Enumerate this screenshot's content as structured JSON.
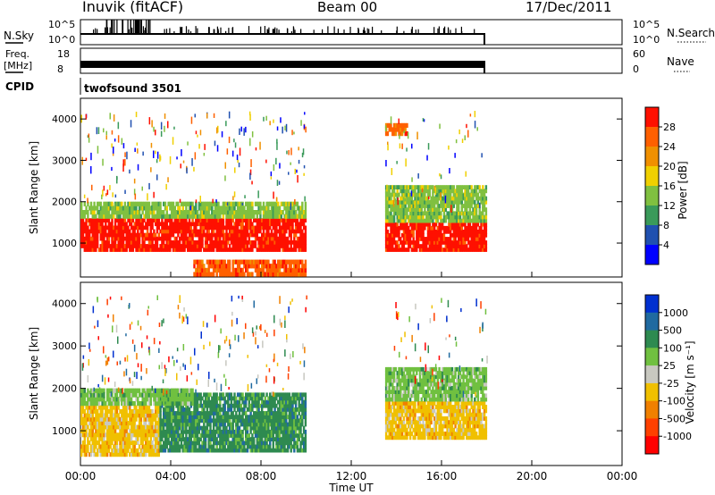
{
  "header": {
    "title": "Inuvik (fitACF)",
    "beam": "Beam 00",
    "date": "17/Dec/2011"
  },
  "info_panels": {
    "nsky_label": "N.Sky",
    "nsky_ticks": [
      "10^5",
      "10^0"
    ],
    "nsearch_ticks": [
      "10^5",
      "10^0"
    ],
    "nsearch_label": "N.Search",
    "freq_label": "Freq.",
    "freq_unit": "[MHz]",
    "freq_ticks": [
      "18",
      "8"
    ],
    "nave_ticks": [
      "60",
      "0"
    ],
    "nave_label": "Nave",
    "cpid_label": "CPID",
    "cpid_value": "twofsound 3501"
  },
  "chart_data": [
    {
      "type": "heatmap",
      "name": "power",
      "ylabel": "Slant Range [km]",
      "ylim": [
        180,
        4500
      ],
      "yticks": [
        "1000",
        "2000",
        "3000",
        "4000"
      ],
      "xlim": [
        "00:00",
        "24:00"
      ],
      "colorbar_label": "Power [dB]",
      "colorbar_ticks": [
        "4",
        "8",
        "12",
        "16",
        "20",
        "24",
        "28"
      ],
      "colors": [
        "#0000ff",
        "#2050b0",
        "#3a9a5a",
        "#80c040",
        "#f0d000",
        "#f09000",
        "#ff6000",
        "#ff1000"
      ],
      "regions": [
        {
          "t0": 0.0,
          "t1": 10.0,
          "r0": 800,
          "r1": 1600,
          "level": "28"
        },
        {
          "t0": 0.0,
          "t1": 10.0,
          "r0": 1600,
          "r1": 2000,
          "level": "12"
        },
        {
          "t0": 5.0,
          "t1": 10.0,
          "r0": 200,
          "r1": 600,
          "level": "24"
        },
        {
          "t0": 13.5,
          "t1": 18.0,
          "r0": 800,
          "r1": 1500,
          "level": "28"
        },
        {
          "t0": 13.5,
          "t1": 18.0,
          "r0": 1500,
          "r1": 2400,
          "level": "12"
        },
        {
          "t0": 13.5,
          "t1": 14.5,
          "r0": 3600,
          "r1": 3900,
          "level": "24"
        }
      ]
    },
    {
      "type": "heatmap",
      "name": "velocity",
      "ylabel": "Slant Range [km]",
      "ylim": [
        180,
        4500
      ],
      "yticks": [
        "1000",
        "2000",
        "3000",
        "4000"
      ],
      "xlim": [
        "00:00",
        "24:00"
      ],
      "colorbar_label": "Velocity [m s⁻¹]",
      "colorbar_ticks": [
        "1000",
        "500",
        "100",
        "25",
        "-25",
        "-100",
        "-500",
        "-1000"
      ],
      "colors": [
        "#0030d0",
        "#206aa0",
        "#2e8a50",
        "#70c040",
        "#c8c8c0",
        "#f0c000",
        "#f08000",
        "#ff4000",
        "#ff0000"
      ],
      "regions": [
        {
          "t0": 0.0,
          "t1": 3.5,
          "r0": 400,
          "r1": 1600,
          "level": "-100"
        },
        {
          "t0": 3.5,
          "t1": 10.0,
          "r0": 500,
          "r1": 1900,
          "level": "100"
        },
        {
          "t0": 0.0,
          "t1": 5.0,
          "r0": 1600,
          "r1": 2000,
          "level": "25"
        },
        {
          "t0": 13.5,
          "t1": 18.0,
          "r0": 800,
          "r1": 1700,
          "level": "-100"
        },
        {
          "t0": 13.5,
          "t1": 18.0,
          "r0": 1700,
          "r1": 2500,
          "level": "25"
        }
      ]
    }
  ],
  "x_axis": {
    "ticks": [
      "00:00",
      "04:00",
      "08:00",
      "12:00",
      "16:00",
      "20:00",
      "00:00"
    ],
    "label": "Time UT"
  }
}
